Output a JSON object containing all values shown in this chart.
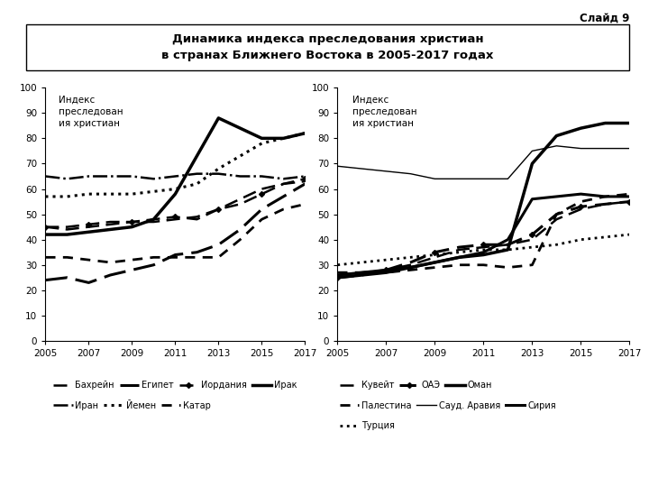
{
  "title_line1": "Динамика индекса преследования христиан",
  "title_line2": "в странах Ближнего Востока в 2005-2017 годах",
  "slide_label": "Слайд 9",
  "ylabel": "Индекс\nпреследован\nия христиан",
  "years": [
    2005,
    2006,
    2007,
    2008,
    2009,
    2010,
    2011,
    2012,
    2013,
    2014,
    2015,
    2016,
    2017
  ],
  "left_chart": {
    "Бахрейн": [
      45,
      44,
      45,
      46,
      47,
      47,
      48,
      49,
      52,
      56,
      60,
      62,
      63
    ],
    "Египет": [
      24,
      25,
      23,
      26,
      28,
      30,
      34,
      35,
      38,
      44,
      52,
      57,
      62
    ],
    "Иордания": [
      45,
      45,
      46,
      47,
      47,
      48,
      49,
      48,
      52,
      54,
      58,
      62,
      64
    ],
    "Ирак": [
      42,
      42,
      43,
      44,
      45,
      48,
      58,
      73,
      88,
      84,
      80,
      80,
      82
    ],
    "Иран": [
      65,
      64,
      65,
      65,
      65,
      64,
      65,
      66,
      66,
      65,
      65,
      64,
      65
    ],
    "Йемен": [
      57,
      57,
      58,
      58,
      58,
      59,
      60,
      62,
      68,
      73,
      78,
      80,
      82
    ],
    "Катар": [
      33,
      33,
      32,
      31,
      32,
      33,
      33,
      33,
      33,
      40,
      48,
      52,
      54
    ]
  },
  "right_chart": {
    "Кувейт": [
      26,
      27,
      28,
      30,
      33,
      36,
      37,
      38,
      40,
      48,
      52,
      54,
      55
    ],
    "ОАЭ": [
      25,
      26,
      28,
      31,
      35,
      37,
      38,
      38,
      42,
      50,
      53,
      54,
      55
    ],
    "Оман": [
      25,
      26,
      27,
      29,
      31,
      33,
      34,
      36,
      70,
      81,
      84,
      86,
      86
    ],
    "Палестина": [
      27,
      27,
      27,
      28,
      29,
      30,
      30,
      29,
      30,
      50,
      55,
      57,
      58
    ],
    "Сауд. Аравия": [
      69,
      68,
      67,
      66,
      64,
      64,
      64,
      64,
      75,
      77,
      76,
      76,
      76
    ],
    "Сирия": [
      26,
      27,
      28,
      29,
      31,
      33,
      35,
      40,
      56,
      57,
      58,
      57,
      57
    ],
    "Турция": [
      30,
      31,
      32,
      33,
      34,
      35,
      36,
      36,
      37,
      38,
      40,
      41,
      42
    ]
  },
  "left_styles": {
    "Бахрейн": {
      "linestyle": "--",
      "linewidth": 1.8,
      "marker": "None",
      "dashes": [
        6,
        3
      ]
    },
    "Египет": {
      "linestyle": "--",
      "linewidth": 2.2,
      "marker": "None",
      "dashes": [
        8,
        3
      ]
    },
    "Иордания": {
      "linestyle": "--",
      "linewidth": 1.8,
      "marker": "D",
      "markersize": 3,
      "dashes": [
        6,
        3
      ]
    },
    "Ирак": {
      "linestyle": "-",
      "linewidth": 2.5,
      "marker": "None",
      "dashes": []
    },
    "Иран": {
      "linestyle": "-.",
      "linewidth": 1.8,
      "marker": "None",
      "dashes": []
    },
    "Йемен": {
      "linestyle": ":",
      "linewidth": 2.2,
      "marker": "None",
      "dashes": []
    },
    "Катар": {
      "linestyle": "--",
      "linewidth": 2.0,
      "marker": "None",
      "dashes": [
        4,
        3
      ]
    }
  },
  "right_styles": {
    "Кувейт": {
      "linestyle": "--",
      "linewidth": 1.8,
      "marker": "None",
      "dashes": [
        6,
        3
      ]
    },
    "ОАЭ": {
      "linestyle": "--",
      "linewidth": 2.2,
      "marker": "D",
      "markersize": 3,
      "dashes": [
        6,
        3
      ]
    },
    "Оман": {
      "linestyle": "-",
      "linewidth": 2.5,
      "marker": "None",
      "dashes": []
    },
    "Палестина": {
      "linestyle": "--",
      "linewidth": 2.0,
      "marker": "None",
      "dashes": [
        4,
        3
      ]
    },
    "Сауд. Аравия": {
      "linestyle": "-",
      "linewidth": 1.0,
      "marker": "None",
      "dashes": []
    },
    "Сирия": {
      "linestyle": "-",
      "linewidth": 2.2,
      "marker": "None",
      "dashes": []
    },
    "Турция": {
      "linestyle": ":",
      "linewidth": 2.0,
      "marker": "None",
      "dashes": []
    }
  },
  "left_legend": [
    {
      "label": "Бахрейн",
      "ls": "--",
      "lw": 1.8,
      "mk": "None",
      "ms": 3,
      "dashes": [
        6,
        3
      ]
    },
    {
      "label": "Египет",
      "ls": "--",
      "lw": 2.2,
      "mk": "None",
      "ms": 3,
      "dashes": [
        8,
        3
      ]
    },
    {
      "label": "Иордания",
      "ls": "--",
      "lw": 1.8,
      "mk": "D",
      "ms": 3,
      "dashes": [
        6,
        3
      ]
    },
    {
      "label": "Ирак",
      "ls": "-",
      "lw": 2.5,
      "mk": "None",
      "ms": 3,
      "dashes": []
    },
    {
      "label": "Иран",
      "ls": "-.",
      "lw": 1.8,
      "mk": "None",
      "ms": 3,
      "dashes": []
    },
    {
      "label": "Йемен",
      "ls": ":",
      "lw": 2.2,
      "mk": "None",
      "ms": 3,
      "dashes": []
    },
    {
      "label": "Катар",
      "ls": "--",
      "lw": 2.0,
      "mk": "None",
      "ms": 3,
      "dashes": [
        4,
        3
      ]
    }
  ],
  "right_legend": [
    {
      "label": "Кувейт",
      "ls": "--",
      "lw": 1.8,
      "mk": "None",
      "ms": 3,
      "dashes": [
        6,
        3
      ]
    },
    {
      "label": "ОАЭ",
      "ls": "--",
      "lw": 2.2,
      "mk": "D",
      "ms": 3,
      "dashes": [
        6,
        3
      ]
    },
    {
      "label": "Оман",
      "ls": "-",
      "lw": 2.5,
      "mk": "None",
      "ms": 3,
      "dashes": []
    },
    {
      "label": "Палестина",
      "ls": "--",
      "lw": 2.0,
      "mk": "None",
      "ms": 3,
      "dashes": [
        4,
        3
      ]
    },
    {
      "label": "Сауд. Аравия",
      "ls": "-",
      "lw": 1.0,
      "mk": "None",
      "ms": 3,
      "dashes": []
    },
    {
      "label": "Сирия",
      "ls": "-",
      "lw": 2.2,
      "mk": "None",
      "ms": 3,
      "dashes": []
    },
    {
      "label": "Турция",
      "ls": ":",
      "lw": 2.0,
      "mk": "None",
      "ms": 3,
      "dashes": []
    }
  ]
}
